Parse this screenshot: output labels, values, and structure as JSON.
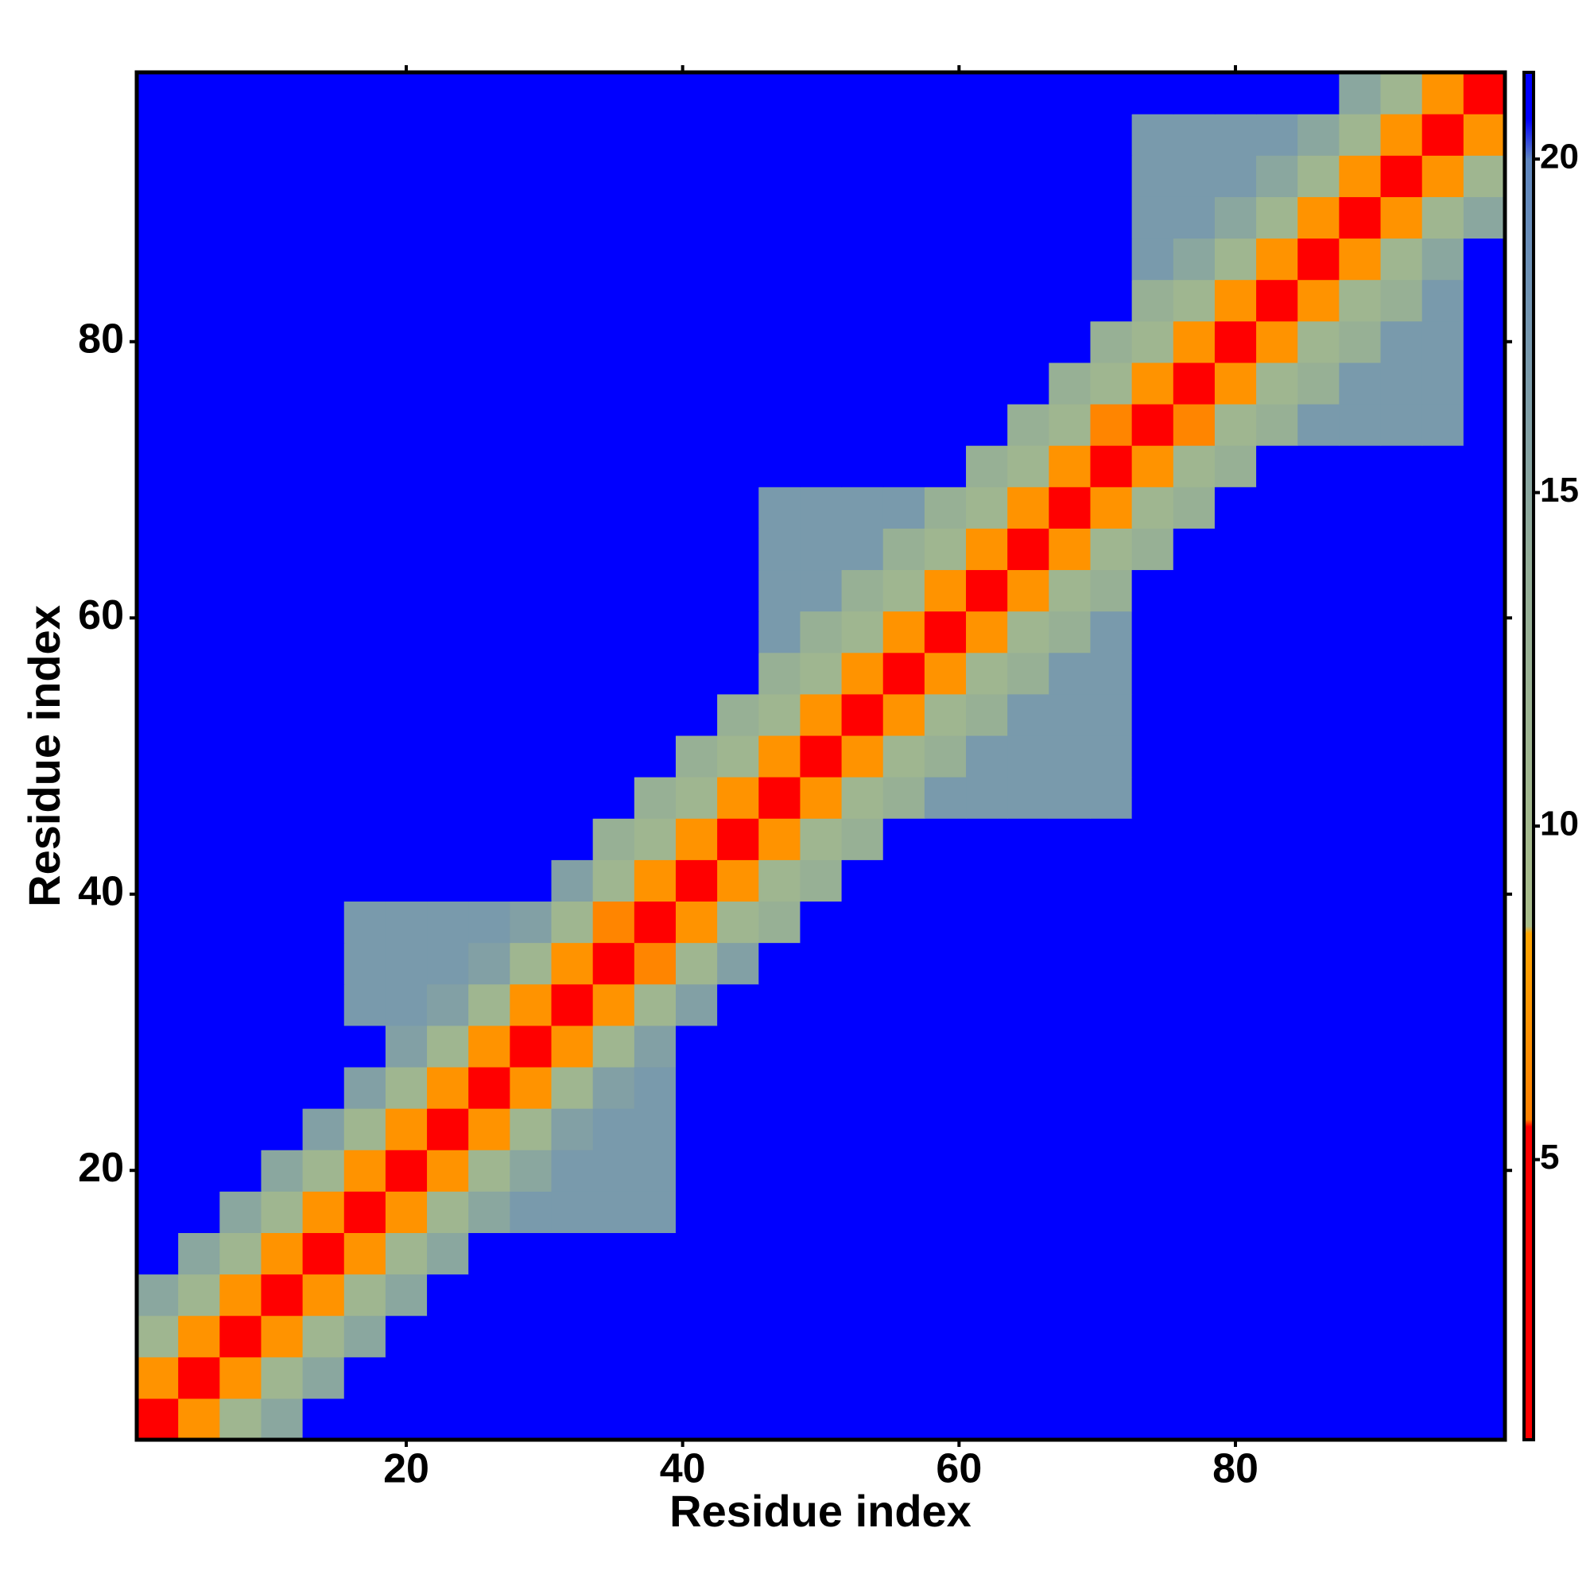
{
  "chart_data": {
    "type": "heatmap",
    "xlabel": "Residue index",
    "ylabel": "Residue index",
    "x_bins": [
      0.5,
      3.5,
      6.5,
      9.5,
      12.5,
      15.5,
      18.5,
      21.5,
      24.5,
      27.5,
      30.5,
      33.5,
      36.5,
      39.5,
      42.5,
      45.5,
      48.5,
      51.5,
      54.5,
      57.5,
      60.5,
      63.5,
      66.5,
      69.5,
      72.5,
      75.5,
      78.5,
      81.5,
      84.5,
      87.5,
      90.5,
      93.5,
      96.5,
      99.5
    ],
    "y_bins": [
      0.5,
      3.5,
      6.5,
      9.5,
      12.5,
      15.5,
      18.5,
      21.5,
      24.5,
      27.5,
      30.5,
      33.5,
      36.5,
      39.5,
      42.5,
      45.5,
      48.5,
      51.5,
      54.5,
      57.5,
      60.5,
      63.5,
      66.5,
      69.5,
      72.5,
      75.5,
      78.5,
      81.5,
      84.5,
      87.5,
      90.5,
      93.5,
      96.5,
      99.5
    ],
    "z": [
      [
        2,
        7,
        11,
        15,
        21,
        21,
        21,
        21,
        21,
        21,
        21,
        21,
        21,
        21,
        21,
        21,
        21,
        21,
        21,
        21,
        21,
        21,
        21,
        21,
        21,
        21,
        21,
        21,
        21,
        21,
        21,
        21,
        21
      ],
      [
        7,
        2,
        7,
        11,
        15,
        21,
        21,
        21,
        21,
        21,
        21,
        21,
        21,
        21,
        21,
        21,
        21,
        21,
        21,
        21,
        21,
        21,
        21,
        21,
        21,
        21,
        21,
        21,
        21,
        21,
        21,
        21,
        21
      ],
      [
        11,
        7,
        2,
        7,
        11,
        15,
        21,
        21,
        21,
        21,
        21,
        21,
        21,
        21,
        21,
        21,
        21,
        21,
        21,
        21,
        21,
        21,
        21,
        21,
        21,
        21,
        21,
        21,
        21,
        21,
        21,
        21,
        21
      ],
      [
        15,
        11,
        7,
        2,
        7,
        11,
        15,
        21,
        21,
        21,
        21,
        21,
        21,
        21,
        21,
        21,
        21,
        21,
        21,
        21,
        21,
        21,
        21,
        21,
        21,
        21,
        21,
        21,
        21,
        21,
        21,
        21,
        21
      ],
      [
        21,
        15,
        11,
        7,
        2,
        7,
        11,
        15,
        21,
        21,
        21,
        21,
        21,
        21,
        21,
        21,
        21,
        21,
        21,
        21,
        21,
        21,
        21,
        21,
        21,
        21,
        21,
        21,
        21,
        21,
        21,
        21,
        21
      ],
      [
        21,
        21,
        15,
        11,
        7,
        2,
        7,
        11,
        15,
        17,
        17,
        17,
        17,
        21,
        21,
        21,
        21,
        21,
        21,
        21,
        21,
        21,
        21,
        21,
        21,
        21,
        21,
        21,
        21,
        21,
        21,
        21,
        21
      ],
      [
        21,
        21,
        21,
        15,
        11,
        7,
        2,
        7,
        11,
        15,
        17,
        17,
        17,
        21,
        21,
        21,
        21,
        21,
        21,
        21,
        21,
        21,
        21,
        21,
        21,
        21,
        21,
        21,
        21,
        21,
        21,
        21,
        21
      ],
      [
        21,
        21,
        21,
        21,
        16,
        11,
        7,
        2,
        7,
        11,
        16,
        17,
        17,
        21,
        21,
        21,
        21,
        21,
        21,
        21,
        21,
        21,
        21,
        21,
        21,
        21,
        21,
        21,
        21,
        21,
        21,
        21,
        21
      ],
      [
        21,
        21,
        21,
        21,
        21,
        16,
        11,
        7,
        2,
        7,
        11,
        16,
        17,
        21,
        21,
        21,
        21,
        21,
        21,
        21,
        21,
        21,
        21,
        21,
        21,
        21,
        21,
        21,
        21,
        21,
        21,
        21,
        21
      ],
      [
        21,
        21,
        21,
        21,
        21,
        21,
        16,
        11,
        7,
        2,
        7,
        11,
        16,
        21,
        21,
        21,
        21,
        21,
        21,
        21,
        21,
        21,
        21,
        21,
        21,
        21,
        21,
        21,
        21,
        21,
        21,
        21,
        21
      ],
      [
        21,
        21,
        21,
        21,
        21,
        17,
        17,
        16,
        11,
        7,
        2,
        7,
        11,
        16,
        21,
        21,
        21,
        21,
        21,
        21,
        21,
        21,
        21,
        21,
        21,
        21,
        21,
        21,
        21,
        21,
        21,
        21,
        21
      ],
      [
        21,
        21,
        21,
        21,
        21,
        17,
        17,
        17,
        16,
        11,
        7,
        2,
        6,
        11,
        16,
        21,
        21,
        21,
        21,
        21,
        21,
        21,
        21,
        21,
        21,
        21,
        21,
        21,
        21,
        21,
        21,
        21,
        21
      ],
      [
        21,
        21,
        21,
        21,
        21,
        17,
        17,
        17,
        17,
        16,
        11,
        6,
        2,
        7,
        11,
        13,
        21,
        21,
        21,
        21,
        21,
        21,
        21,
        21,
        21,
        21,
        21,
        21,
        21,
        21,
        21,
        21,
        21
      ],
      [
        21,
        21,
        21,
        21,
        21,
        21,
        21,
        21,
        21,
        21,
        16,
        11,
        7,
        2,
        7,
        11,
        13,
        21,
        21,
        21,
        21,
        21,
        21,
        21,
        21,
        21,
        21,
        21,
        21,
        21,
        21,
        21,
        21
      ],
      [
        21,
        21,
        21,
        21,
        21,
        21,
        21,
        21,
        21,
        21,
        21,
        13,
        11,
        7,
        2,
        7,
        11,
        13,
        21,
        21,
        21,
        21,
        21,
        21,
        21,
        21,
        21,
        21,
        21,
        21,
        21,
        21,
        21
      ],
      [
        21,
        21,
        21,
        21,
        21,
        21,
        21,
        21,
        21,
        21,
        21,
        21,
        13,
        11,
        7,
        2,
        7,
        11,
        13,
        17,
        17,
        17,
        17,
        17,
        21,
        21,
        21,
        21,
        21,
        21,
        21,
        21,
        21
      ],
      [
        21,
        21,
        21,
        21,
        21,
        21,
        21,
        21,
        21,
        21,
        21,
        21,
        21,
        13,
        11,
        7,
        2,
        7,
        11,
        13,
        17,
        17,
        17,
        17,
        21,
        21,
        21,
        21,
        21,
        21,
        21,
        21,
        21
      ],
      [
        21,
        21,
        21,
        21,
        21,
        21,
        21,
        21,
        21,
        21,
        21,
        21,
        21,
        21,
        13,
        11,
        7,
        2,
        7,
        11,
        13,
        17,
        17,
        17,
        21,
        21,
        21,
        21,
        21,
        21,
        21,
        21,
        21
      ],
      [
        21,
        21,
        21,
        21,
        21,
        21,
        21,
        21,
        21,
        21,
        21,
        21,
        21,
        21,
        21,
        13,
        11,
        7,
        2,
        7,
        11,
        13,
        17,
        17,
        21,
        21,
        21,
        21,
        21,
        21,
        21,
        21,
        21
      ],
      [
        21,
        21,
        21,
        21,
        21,
        21,
        21,
        21,
        21,
        21,
        21,
        21,
        21,
        21,
        21,
        17,
        13,
        11,
        7,
        2,
        7,
        11,
        13,
        17,
        21,
        21,
        21,
        21,
        21,
        21,
        21,
        21,
        21
      ],
      [
        21,
        21,
        21,
        21,
        21,
        21,
        21,
        21,
        21,
        21,
        21,
        21,
        21,
        21,
        21,
        17,
        17,
        13,
        11,
        7,
        2,
        7,
        11,
        13,
        21,
        21,
        21,
        21,
        21,
        21,
        21,
        21,
        21
      ],
      [
        21,
        21,
        21,
        21,
        21,
        21,
        21,
        21,
        21,
        21,
        21,
        21,
        21,
        21,
        21,
        17,
        17,
        17,
        13,
        11,
        7,
        2,
        7,
        11,
        13,
        21,
        21,
        21,
        21,
        21,
        21,
        21,
        21
      ],
      [
        21,
        21,
        21,
        21,
        21,
        21,
        21,
        21,
        21,
        21,
        21,
        21,
        21,
        21,
        21,
        17,
        17,
        17,
        17,
        13,
        11,
        7,
        2,
        7,
        11,
        13,
        21,
        21,
        21,
        21,
        21,
        21,
        21
      ],
      [
        21,
        21,
        21,
        21,
        21,
        21,
        21,
        21,
        21,
        21,
        21,
        21,
        21,
        21,
        21,
        21,
        21,
        21,
        21,
        21,
        13,
        11,
        7,
        2,
        7,
        11,
        13,
        21,
        21,
        21,
        21,
        21,
        21
      ],
      [
        21,
        21,
        21,
        21,
        21,
        21,
        21,
        21,
        21,
        21,
        21,
        21,
        21,
        21,
        21,
        21,
        21,
        21,
        21,
        21,
        21,
        13,
        11,
        6,
        2,
        6,
        11,
        13,
        17,
        17,
        17,
        17,
        21
      ],
      [
        21,
        21,
        21,
        21,
        21,
        21,
        21,
        21,
        21,
        21,
        21,
        21,
        21,
        21,
        21,
        21,
        21,
        21,
        21,
        21,
        21,
        21,
        13,
        11,
        7,
        2,
        7,
        11,
        13,
        17,
        17,
        17,
        21
      ],
      [
        21,
        21,
        21,
        21,
        21,
        21,
        21,
        21,
        21,
        21,
        21,
        21,
        21,
        21,
        21,
        21,
        21,
        21,
        21,
        21,
        21,
        21,
        21,
        13,
        11,
        7,
        2,
        7,
        11,
        13,
        17,
        17,
        21
      ],
      [
        21,
        21,
        21,
        21,
        21,
        21,
        21,
        21,
        21,
        21,
        21,
        21,
        21,
        21,
        21,
        21,
        21,
        21,
        21,
        21,
        21,
        21,
        21,
        21,
        13,
        11,
        7,
        2,
        7,
        11,
        13,
        17,
        21
      ],
      [
        21,
        21,
        21,
        21,
        21,
        21,
        21,
        21,
        21,
        21,
        21,
        21,
        21,
        21,
        21,
        21,
        21,
        21,
        21,
        21,
        21,
        21,
        21,
        21,
        17,
        15,
        11,
        7,
        2,
        7,
        11,
        15,
        21
      ],
      [
        21,
        21,
        21,
        21,
        21,
        21,
        21,
        21,
        21,
        21,
        21,
        21,
        21,
        21,
        21,
        21,
        21,
        21,
        21,
        21,
        21,
        21,
        21,
        21,
        17,
        17,
        15,
        11,
        7,
        2,
        7,
        11,
        15
      ],
      [
        21,
        21,
        21,
        21,
        21,
        21,
        21,
        21,
        21,
        21,
        21,
        21,
        21,
        21,
        21,
        21,
        21,
        21,
        21,
        21,
        21,
        21,
        21,
        21,
        17,
        17,
        17,
        15,
        11,
        7,
        2,
        7,
        11
      ],
      [
        21,
        21,
        21,
        21,
        21,
        21,
        21,
        21,
        21,
        21,
        21,
        21,
        21,
        21,
        21,
        21,
        21,
        21,
        21,
        21,
        21,
        21,
        21,
        21,
        17,
        17,
        17,
        17,
        15,
        11,
        7,
        2,
        7
      ],
      [
        21,
        21,
        21,
        21,
        21,
        21,
        21,
        21,
        21,
        21,
        21,
        21,
        21,
        21,
        21,
        21,
        21,
        21,
        21,
        21,
        21,
        21,
        21,
        21,
        21,
        21,
        21,
        21,
        21,
        15,
        11,
        7,
        2
      ]
    ],
    "xlim": [
      0.5,
      99.5
    ],
    "ylim": [
      0.5,
      99.5
    ],
    "xticks": [
      20,
      40,
      60,
      80
    ],
    "yticks": [
      20,
      40,
      60,
      80
    ],
    "clim": [
      0.8,
      21.3
    ],
    "cticks": [
      5,
      10,
      15,
      20
    ],
    "colorscale": [
      {
        "value": 0.8,
        "color": "#ff0000"
      },
      {
        "value": 5.5,
        "color": "#ff0000"
      },
      {
        "value": 5.6,
        "color": "#ff8000"
      },
      {
        "value": 8.4,
        "color": "#ffa500"
      },
      {
        "value": 8.5,
        "color": "#a9bd8a"
      },
      {
        "value": 14,
        "color": "#93ad98"
      },
      {
        "value": 20,
        "color": "#5f86c0"
      },
      {
        "value": 20.6,
        "color": "#0000ff"
      },
      {
        "value": 21.3,
        "color": "#0000ff"
      }
    ]
  }
}
